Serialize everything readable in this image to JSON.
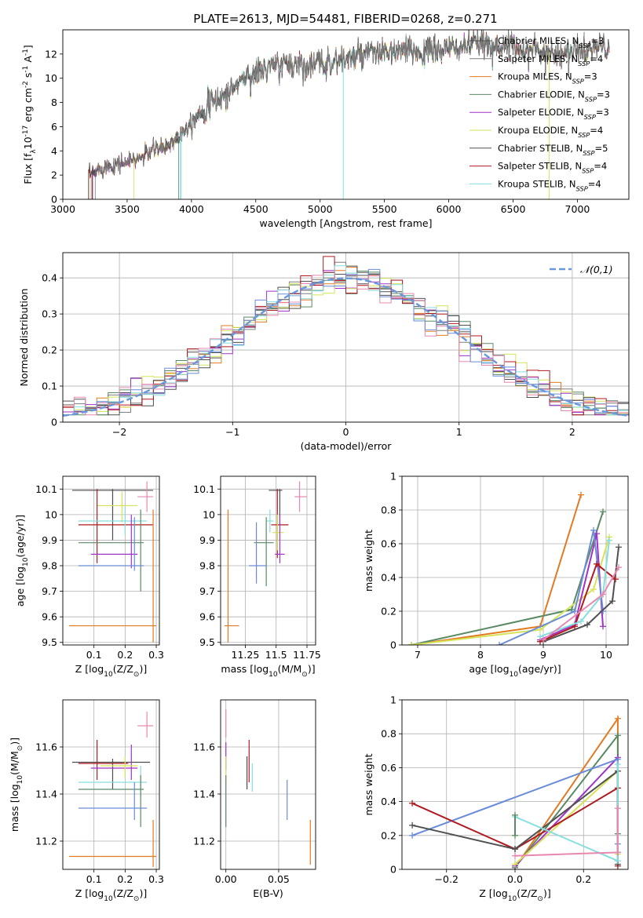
{
  "figure": {
    "title": "PLATE=2613, MJD=54481, FIBERID=0268, z=0.271"
  },
  "colors": {
    "chabrier_miles": "#4d4d4d",
    "salpeter_miles": "#7f7f7f",
    "kroupa_miles": "#e27a22",
    "chabrier_elodie": "#5a8a64",
    "salpeter_elodie": "#a033c9",
    "kroupa_elodie": "#d6e35a",
    "chabrier_stelib": "#505050",
    "salpeter_stelib": "#b01a20",
    "kroupa_stelib": "#86dede",
    "pink": "#e888b0",
    "blue": "#6a8cd8",
    "normal_curve": "#6a98dc"
  },
  "chart_data": [
    {
      "id": "spectrum",
      "type": "line",
      "xlabel": "wavelength [Angstrom, rest frame]",
      "ylabel": "Flux [f$_λ$10$^{-17}$ erg cm$^{-2}$ s$^{-1}$ A$^{-1}$]",
      "xlim": [
        3000,
        7400
      ],
      "ylim": [
        0,
        14
      ],
      "xticks": [
        3000,
        3500,
        4000,
        4500,
        5000,
        5500,
        6000,
        6500,
        7000
      ],
      "yticks": [
        0,
        2,
        4,
        6,
        8,
        10,
        12
      ],
      "legend_position": "upper right",
      "legend": [
        {
          "name": "Chabrier MILES, N",
          "sub": "SSP",
          "tail": "=3",
          "color_key": "chabrier_miles"
        },
        {
          "name": "Salpeter MILES, N",
          "sub": "SSP",
          "tail": "=4",
          "color_key": "salpeter_miles"
        },
        {
          "name": "Kroupa MILES, N",
          "sub": "SSP",
          "tail": "=3",
          "color_key": "kroupa_miles"
        },
        {
          "name": "Chabrier ELODIE, N",
          "sub": "SSP",
          "tail": "=3",
          "color_key": "chabrier_elodie"
        },
        {
          "name": "Salpeter ELODIE, N",
          "sub": "SSP",
          "tail": "=3",
          "color_key": "salpeter_elodie"
        },
        {
          "name": "Kroupa ELODIE, N",
          "sub": "SSP",
          "tail": "=4",
          "color_key": "kroupa_elodie"
        },
        {
          "name": "Chabrier STELIB, N",
          "sub": "SSP",
          "tail": "=5",
          "color_key": "chabrier_stelib"
        },
        {
          "name": "Salpeter STELIB, N",
          "sub": "SSP",
          "tail": "=4",
          "color_key": "salpeter_stelib"
        },
        {
          "name": "Kroupa STELIB, N",
          "sub": "SSP",
          "tail": "=4",
          "color_key": "kroupa_stelib"
        }
      ],
      "continuum": {
        "x": [
          3220,
          3300,
          3400,
          3500,
          3600,
          3700,
          3800,
          3900,
          4000,
          4100,
          4200,
          4300,
          4400,
          4500,
          4600,
          4700,
          4800,
          4900,
          5000,
          5200,
          5400,
          5600,
          5800,
          6000,
          6200,
          6400,
          6600,
          6800,
          7000,
          7200
        ],
        "y": [
          2.0,
          2.6,
          2.9,
          3.1,
          3.4,
          4.1,
          4.3,
          5.2,
          6.5,
          7.5,
          8.2,
          8.9,
          10.0,
          10.4,
          10.9,
          11.1,
          11.2,
          11.1,
          11.2,
          11.6,
          12.0,
          12.2,
          12.2,
          12.4,
          12.8,
          12.7,
          12.4,
          12.1,
          12.2,
          12.6
        ]
      },
      "model_starts": [
        3220,
        3230,
        3550,
        3900,
        3200,
        3910,
        3225,
        3200,
        3250
      ],
      "dips": [
        {
          "x": 5180,
          "y": 0
        },
        {
          "x": 6780,
          "y": 0
        },
        {
          "x": 3920,
          "y": 0
        }
      ]
    },
    {
      "id": "residual_hist",
      "type": "line",
      "xlabel": "(data-model)/error",
      "ylabel": "Normed distribution",
      "xlim": [
        -2.5,
        2.5
      ],
      "ylim": [
        0,
        0.47
      ],
      "xticks": [
        -2,
        -1,
        0,
        1,
        2
      ],
      "yticks": [
        0.0,
        0.1,
        0.2,
        0.3,
        0.4
      ],
      "legend_position": "upper right",
      "legend": [
        {
          "name": "$\\mathcal{N}(0,1)$",
          "color_key": "normal_curve"
        }
      ],
      "bin_width": 0.1,
      "normal": {
        "mu": 0,
        "sigma": 1
      }
    },
    {
      "id": "age_vs_Z",
      "type": "scatter",
      "xlabel": "Z [log$_{10}$(Z/Z$_\\odot$)]",
      "ylabel": "age  [log$_{10}$(age/yr)]",
      "xlim": [
        0.0,
        0.31
      ],
      "ylim": [
        9.49,
        10.15
      ],
      "xticks": [
        0.1,
        0.2,
        0.3
      ],
      "yticks": [
        9.5,
        9.6,
        9.7,
        9.8,
        9.9,
        10.0,
        10.1
      ],
      "points": [
        {
          "x": 0.16,
          "y": 10.095,
          "xerr": [
            0.03,
            0.29
          ],
          "yerr": [
            9.9,
            10.1
          ],
          "color_key": "chabrier_miles"
        },
        {
          "x": 0.27,
          "y": 10.07,
          "xerr": [
            0.24,
            0.29
          ],
          "yerr": [
            10.01,
            10.13
          ],
          "color_key": "pink"
        },
        {
          "x": 0.19,
          "y": 10.035,
          "xerr": [
            0.11,
            0.24
          ],
          "yerr": [
            9.97,
            10.09
          ],
          "color_key": "kroupa_elodie"
        },
        {
          "x": 0.11,
          "y": 9.96,
          "xerr": [
            0.05,
            0.29
          ],
          "yerr": [
            9.81,
            10.1
          ],
          "color_key": "salpeter_stelib"
        },
        {
          "x": 0.2,
          "y": 9.975,
          "xerr": [
            0.05,
            0.27
          ],
          "yerr": [
            9.92,
            10.03
          ],
          "color_key": "kroupa_stelib"
        },
        {
          "x": 0.25,
          "y": 9.89,
          "xerr": [
            0.05,
            0.26
          ],
          "yerr": [
            9.7,
            10.02
          ],
          "color_key": "chabrier_elodie"
        },
        {
          "x": 0.22,
          "y": 9.845,
          "xerr": [
            0.09,
            0.24
          ],
          "yerr": [
            9.79,
            10.0
          ],
          "color_key": "salpeter_elodie"
        },
        {
          "x": 0.23,
          "y": 9.8,
          "xerr": [
            0.05,
            0.26
          ],
          "yerr": [
            9.78,
            9.99
          ],
          "color_key": "blue"
        },
        {
          "x": 0.29,
          "y": 9.565,
          "xerr": [
            0.02,
            0.3
          ],
          "yerr": [
            9.5,
            10.02
          ],
          "color_key": "kroupa_miles"
        }
      ]
    },
    {
      "id": "age_vs_mass",
      "type": "scatter",
      "xlabel": "mass [log$_{10}$(M/M$_\\odot$)]",
      "ylabel": "",
      "xlim": [
        11.05,
        11.82
      ],
      "ylim": [
        9.49,
        10.15
      ],
      "xticks": [
        11.25,
        11.5,
        11.75
      ],
      "yticks": [
        9.5,
        9.6,
        9.7,
        9.8,
        9.9,
        10.0,
        10.1
      ],
      "points": [
        {
          "x": 11.53,
          "y": 10.095,
          "xerr": [
            11.44,
            11.55
          ],
          "yerr": [
            9.96,
            10.1
          ],
          "color_key": "chabrier_miles"
        },
        {
          "x": 11.69,
          "y": 10.07,
          "xerr": [
            11.65,
            11.75
          ],
          "yerr": [
            10.01,
            10.13
          ],
          "color_key": "pink"
        },
        {
          "x": 11.45,
          "y": 9.975,
          "xerr": [
            11.42,
            11.48
          ],
          "yerr": [
            9.93,
            10.02
          ],
          "color_key": "kroupa_stelib"
        },
        {
          "x": 11.51,
          "y": 9.96,
          "xerr": [
            11.46,
            11.6
          ],
          "yerr": [
            9.83,
            10.1
          ],
          "color_key": "salpeter_stelib"
        },
        {
          "x": 11.51,
          "y": 9.93,
          "xerr": [
            11.47,
            11.56
          ],
          "yerr": [
            9.86,
            10.0
          ],
          "color_key": "kroupa_elodie"
        },
        {
          "x": 11.42,
          "y": 9.89,
          "xerr": [
            11.32,
            11.48
          ],
          "yerr": [
            9.72,
            9.99
          ],
          "color_key": "chabrier_elodie"
        },
        {
          "x": 11.53,
          "y": 9.845,
          "xerr": [
            11.49,
            11.57
          ],
          "yerr": [
            9.81,
            10.0
          ],
          "color_key": "salpeter_elodie"
        },
        {
          "x": 11.34,
          "y": 9.8,
          "xerr": [
            11.28,
            11.42
          ],
          "yerr": [
            9.73,
            9.97
          ],
          "color_key": "blue"
        },
        {
          "x": 11.11,
          "y": 9.565,
          "xerr": [
            11.08,
            11.2
          ],
          "yerr": [
            9.5,
            10.02
          ],
          "color_key": "kroupa_miles"
        }
      ]
    },
    {
      "id": "mass_weight_vs_age",
      "type": "line",
      "xlabel": "age  [log$_{10}$(age/yr)]",
      "ylabel": "mass weight",
      "xlim": [
        6.75,
        10.35
      ],
      "ylim": [
        0,
        1.0
      ],
      "xticks": [
        7,
        8,
        9,
        10
      ],
      "yticks": [
        0.0,
        0.2,
        0.4,
        0.6,
        0.8,
        1.0
      ],
      "series": [
        {
          "color_key": "kroupa_miles",
          "x": [
            6.9,
            8.95,
            9.6
          ],
          "y": [
            0.0,
            0.11,
            0.89
          ]
        },
        {
          "color_key": "chabrier_elodie",
          "x": [
            6.9,
            9.45,
            9.95
          ],
          "y": [
            0.0,
            0.21,
            0.79
          ]
        },
        {
          "color_key": "kroupa_elodie",
          "x": [
            6.9,
            8.95,
            9.8,
            10.05
          ],
          "y": [
            0.0,
            0.09,
            0.33,
            0.64
          ]
        },
        {
          "color_key": "salpeter_elodie",
          "x": [
            8.95,
            9.5,
            9.85,
            9.95
          ],
          "y": [
            0.03,
            0.12,
            0.66,
            0.11
          ]
        },
        {
          "color_key": "blue",
          "x": [
            8.3,
            9.5,
            9.8,
            9.95
          ],
          "y": [
            0.0,
            0.2,
            0.68,
            0.2
          ]
        },
        {
          "color_key": "chabrier_stelib",
          "x": [
            9.0,
            9.7,
            10.1,
            10.2
          ],
          "y": [
            0.02,
            0.12,
            0.26,
            0.58
          ]
        },
        {
          "color_key": "salpeter_stelib",
          "x": [
            8.95,
            9.5,
            9.85,
            10.15
          ],
          "y": [
            0.02,
            0.11,
            0.48,
            0.39
          ]
        },
        {
          "color_key": "kroupa_stelib",
          "x": [
            8.95,
            9.6,
            9.95,
            10.05
          ],
          "y": [
            0.05,
            0.14,
            0.3,
            0.62
          ]
        },
        {
          "color_key": "pink",
          "x": [
            9.0,
            9.95,
            10.2
          ],
          "y": [
            0.03,
            0.3,
            0.46
          ]
        }
      ]
    },
    {
      "id": "mass_vs_Z",
      "type": "scatter",
      "xlabel": "Z [log$_{10}$(Z/Z$_\\odot$)]",
      "ylabel": "mass [log$_{10}$(M/M$_\\odot$)]",
      "xlim": [
        0.0,
        0.31
      ],
      "ylim": [
        11.08,
        11.8
      ],
      "xticks": [
        0.1,
        0.2,
        0.3
      ],
      "yticks": [
        11.2,
        11.4,
        11.6
      ],
      "points": [
        {
          "x": 0.27,
          "y": 11.69,
          "xerr": [
            0.24,
            0.29
          ],
          "yerr": [
            11.64,
            11.75
          ],
          "color_key": "pink"
        },
        {
          "x": 0.11,
          "y": 11.53,
          "xerr": [
            0.05,
            0.21
          ],
          "yerr": [
            11.46,
            11.63
          ],
          "color_key": "salpeter_stelib"
        },
        {
          "x": 0.16,
          "y": 11.535,
          "xerr": [
            0.03,
            0.28
          ],
          "yerr": [
            11.42,
            11.55
          ],
          "color_key": "chabrier_miles"
        },
        {
          "x": 0.22,
          "y": 11.51,
          "xerr": [
            0.09,
            0.24
          ],
          "yerr": [
            11.46,
            11.61
          ],
          "color_key": "salpeter_elodie"
        },
        {
          "x": 0.2,
          "y": 11.52,
          "xerr": [
            0.12,
            0.24
          ],
          "yerr": [
            11.47,
            11.56
          ],
          "color_key": "kroupa_elodie"
        },
        {
          "x": 0.25,
          "y": 11.45,
          "xerr": [
            0.05,
            0.27
          ],
          "yerr": [
            11.39,
            11.52
          ],
          "color_key": "kroupa_stelib"
        },
        {
          "x": 0.25,
          "y": 11.42,
          "xerr": [
            0.05,
            0.26
          ],
          "yerr": [
            11.26,
            11.48
          ],
          "color_key": "chabrier_elodie"
        },
        {
          "x": 0.23,
          "y": 11.34,
          "xerr": [
            0.05,
            0.27
          ],
          "yerr": [
            11.29,
            11.45
          ],
          "color_key": "blue"
        },
        {
          "x": 0.29,
          "y": 11.135,
          "xerr": [
            0.02,
            0.3
          ],
          "yerr": [
            11.09,
            11.29
          ],
          "color_key": "kroupa_miles"
        }
      ]
    },
    {
      "id": "mass_vs_EBV",
      "type": "scatter",
      "xlabel": "E(B-V)",
      "ylabel": "",
      "xlim": [
        -0.005,
        0.085
      ],
      "ylim": [
        11.08,
        11.8
      ],
      "xticks": [
        0.0,
        0.05
      ],
      "xtick_labels": [
        "0.00",
        "0.05"
      ],
      "yticks": [
        11.2,
        11.4,
        11.6
      ],
      "points": [
        {
          "x": 0.0,
          "y": 11.69,
          "yerr": [
            11.64,
            11.76
          ],
          "color_key": "pink"
        },
        {
          "x": 0.0,
          "y": 11.55,
          "yerr": [
            11.5,
            11.62
          ],
          "color_key": "salpeter_elodie"
        },
        {
          "x": 0.0,
          "y": 11.5,
          "yerr": [
            11.44,
            11.56
          ],
          "color_key": "kroupa_elodie"
        },
        {
          "x": 0.0,
          "y": 11.42,
          "yerr": [
            11.26,
            11.48
          ],
          "color_key": "chabrier_elodie"
        },
        {
          "x": 0.02,
          "y": 11.5,
          "yerr": [
            11.42,
            11.56
          ],
          "color_key": "chabrier_miles"
        },
        {
          "x": 0.022,
          "y": 11.53,
          "yerr": [
            11.45,
            11.63
          ],
          "color_key": "salpeter_stelib"
        },
        {
          "x": 0.025,
          "y": 11.46,
          "yerr": [
            11.41,
            11.53
          ],
          "color_key": "kroupa_stelib"
        },
        {
          "x": 0.058,
          "y": 11.38,
          "yerr": [
            11.29,
            11.46
          ],
          "color_key": "blue"
        },
        {
          "x": 0.08,
          "y": 11.16,
          "yerr": [
            11.1,
            11.29
          ],
          "color_key": "kroupa_miles"
        }
      ]
    },
    {
      "id": "mass_weight_vs_Z",
      "type": "line",
      "xlabel": "Z [log$_{10}$(Z/Z$_\\odot$)]",
      "ylabel": "mass weight",
      "xlim": [
        -0.33,
        0.33
      ],
      "ylim": [
        0,
        1.0
      ],
      "xticks": [
        -0.2,
        0.0,
        0.2
      ],
      "xtick_labels": [
        "−0.2",
        "0.0",
        "0.2"
      ],
      "yticks": [
        0.0,
        0.2,
        0.4,
        0.6,
        0.8,
        1.0
      ],
      "series": [
        {
          "color_key": "kroupa_miles",
          "x": [
            0.0,
            0.3,
            0.3
          ],
          "y": [
            0.01,
            0.89,
            0.1
          ]
        },
        {
          "color_key": "chabrier_elodie",
          "x": [
            0.0,
            0.3,
            0.3
          ],
          "y": [
            0.01,
            0.79,
            0.21
          ]
        },
        {
          "color_key": "salpeter_elodie",
          "x": [
            0.0,
            0.3,
            0.3
          ],
          "y": [
            0.02,
            0.66,
            0.1
          ]
        },
        {
          "color_key": "blue",
          "x": [
            -0.3,
            0.3,
            0.3
          ],
          "y": [
            0.2,
            0.65,
            0.15
          ]
        },
        {
          "color_key": "kroupa_elodie",
          "x": [
            0.0,
            0.3,
            0.3
          ],
          "y": [
            0.03,
            0.58,
            0.09
          ]
        },
        {
          "color_key": "salpeter_stelib",
          "x": [
            -0.3,
            0.0,
            0.3,
            0.3
          ],
          "y": [
            0.39,
            0.12,
            0.48,
            0.02
          ]
        },
        {
          "color_key": "chabrier_stelib",
          "x": [
            -0.3,
            0.0,
            0.3,
            0.3
          ],
          "y": [
            0.26,
            0.12,
            0.58,
            0.03
          ]
        },
        {
          "color_key": "kroupa_stelib",
          "x": [
            0.0,
            0.3,
            0.3
          ],
          "y": [
            0.31,
            0.05,
            0.62
          ]
        },
        {
          "color_key": "pink",
          "x": [
            0.0,
            0.3,
            0.3
          ],
          "y": [
            0.08,
            0.1,
            0.36
          ]
        },
        {
          "color_key": "chabrier_elodie",
          "x": [
            0.0,
            0.0
          ],
          "y": [
            0.2,
            0.32
          ]
        }
      ]
    }
  ]
}
